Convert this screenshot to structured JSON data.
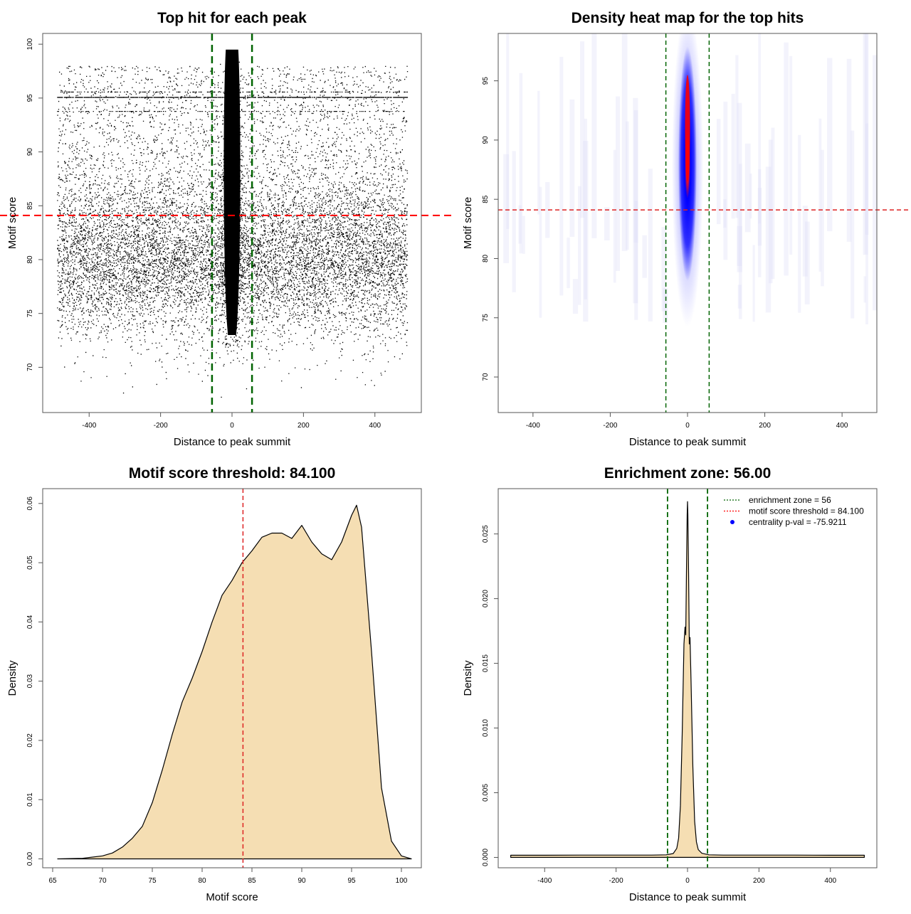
{
  "chart_data": [
    {
      "type": "scatter",
      "title": "Top hit for each peak",
      "xlabel": "Distance to peak summit",
      "ylabel": "Motif score",
      "xlim": [
        -530,
        530
      ],
      "ylim": [
        65.8,
        101
      ],
      "xticks": [
        -400,
        -200,
        0,
        200,
        400
      ],
      "yticks": [
        70,
        75,
        80,
        85,
        90,
        95,
        100
      ],
      "point_distribution": {
        "central_cluster": {
          "x_center": 0,
          "x_halfwidth": 25,
          "y_range": [
            73,
            99.5
          ]
        },
        "background": {
          "x_range": [
            -490,
            490
          ],
          "y_center": 80,
          "y_range": [
            67,
            98
          ]
        },
        "dense_bands_y": [
          95.1,
          95.6,
          93.8
        ]
      },
      "vlines": [
        -56,
        56
      ],
      "hline": 84.1,
      "grid": false
    },
    {
      "type": "heatmap",
      "title": "Density heat map for the top hits",
      "xlabel": "Distance to peak summit",
      "ylabel": "Motif score",
      "xlim": [
        -490,
        490
      ],
      "ylim": [
        67,
        99
      ],
      "xticks": [
        -400,
        -200,
        0,
        200,
        400
      ],
      "yticks": [
        70,
        75,
        80,
        85,
        90,
        95
      ],
      "hotspot": {
        "x": 0,
        "y_range": [
          79,
          97
        ],
        "peak_y": 91
      },
      "vlines": [
        -56,
        56
      ],
      "hline": 84.1,
      "grid": false
    },
    {
      "type": "area",
      "title": "Motif score threshold: 84.100",
      "xlabel": "Motif score",
      "ylabel": "Density",
      "xlim": [
        64,
        102
      ],
      "ylim": [
        -0.0015,
        0.0625
      ],
      "xticks": [
        65,
        70,
        75,
        80,
        85,
        90,
        95,
        100
      ],
      "yticks": [
        0.0,
        0.01,
        0.02,
        0.03,
        0.04,
        0.05,
        0.06
      ],
      "ytick_labels": [
        "0.00",
        "0.01",
        "0.02",
        "0.03",
        "0.04",
        "0.05",
        "0.06"
      ],
      "x": [
        65.5,
        68,
        70,
        71,
        72,
        73,
        74,
        75,
        76,
        77,
        78,
        79,
        80,
        81,
        82,
        83,
        84,
        85,
        86,
        87,
        88,
        89,
        90,
        91,
        92,
        93,
        94,
        95,
        95.5,
        96,
        97,
        98,
        99,
        100,
        101
      ],
      "values": [
        0.0,
        0.0001,
        0.0005,
        0.001,
        0.002,
        0.0035,
        0.0055,
        0.0095,
        0.015,
        0.021,
        0.0265,
        0.0305,
        0.035,
        0.04,
        0.0445,
        0.047,
        0.05,
        0.052,
        0.0543,
        0.055,
        0.055,
        0.0541,
        0.0563,
        0.0535,
        0.0515,
        0.0505,
        0.0535,
        0.058,
        0.0597,
        0.056,
        0.035,
        0.012,
        0.003,
        0.0005,
        0.0
      ],
      "vline": 84.1,
      "fill_color": "#f5deb3",
      "grid": false
    },
    {
      "type": "area",
      "title": "Enrichment zone: 56.00",
      "xlabel": "Distance to peak summit",
      "ylabel": "Density",
      "xlim": [
        -530,
        530
      ],
      "ylim": [
        -0.0008,
        0.0285
      ],
      "xticks": [
        -400,
        -200,
        0,
        200,
        400
      ],
      "yticks": [
        0.0,
        0.005,
        0.01,
        0.015,
        0.02,
        0.025
      ],
      "ytick_labels": [
        "0.000",
        "0.005",
        "0.010",
        "0.015",
        "0.020",
        "0.025"
      ],
      "x": [
        -495,
        -400,
        -300,
        -200,
        -100,
        -60,
        -40,
        -30,
        -25,
        -20,
        -15,
        -10,
        -7,
        -5,
        -3,
        -1,
        0,
        1,
        3,
        5,
        7,
        10,
        15,
        20,
        25,
        30,
        40,
        60,
        100,
        200,
        300,
        400,
        495
      ],
      "values": [
        0.00017,
        0.00017,
        0.00018,
        0.00018,
        0.00018,
        0.0002,
        0.0003,
        0.0007,
        0.0015,
        0.004,
        0.0095,
        0.0165,
        0.0178,
        0.0172,
        0.022,
        0.0265,
        0.0275,
        0.0265,
        0.022,
        0.0165,
        0.017,
        0.0135,
        0.007,
        0.0028,
        0.0012,
        0.0006,
        0.00032,
        0.0002,
        0.00018,
        0.00018,
        0.00018,
        0.00017,
        0.00017
      ],
      "vlines": [
        -56,
        56
      ],
      "fill_color": "#f5deb3",
      "legend": {
        "placement": "top-right",
        "entries": [
          {
            "label": "enrichment zone = 56",
            "color": "#006400",
            "symbol": "dotted-line"
          },
          {
            "label": "motif score threshold = 84.100",
            "color": "#ff0000",
            "symbol": "dotted-line"
          },
          {
            "label": "centrality p-val = -75.9211",
            "color": "#0000ff",
            "symbol": "dot"
          }
        ]
      },
      "grid": false
    }
  ]
}
